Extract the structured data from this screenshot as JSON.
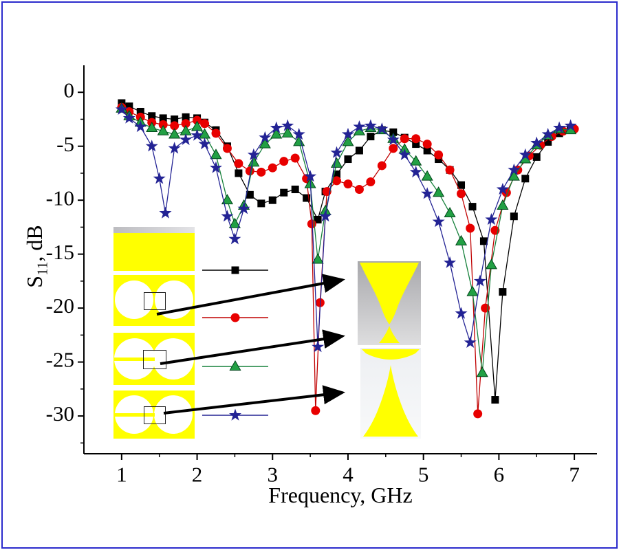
{
  "page": {
    "background": "#ffffff",
    "border_color": "#2a2acc"
  },
  "chart_data": {
    "type": "line",
    "title": "",
    "xlabel": "Frequency, GHz",
    "ylabel": "S11, dB",
    "ylabel_parts": {
      "main": "S",
      "sub": "11",
      "rest": ", dB"
    },
    "xlim": [
      0.5,
      7.3
    ],
    "ylim": [
      -33.5,
      2.5
    ],
    "xticks": [
      1,
      2,
      3,
      4,
      5,
      6,
      7
    ],
    "yticks": [
      0,
      -5,
      -10,
      -15,
      -20,
      -25,
      -30
    ],
    "grid": false,
    "legend": {
      "position": "inside-bottom-left",
      "style": "marker-and-line swatches, no text"
    },
    "series": [
      {
        "name": "solid-patch",
        "marker": "square",
        "color": "#000000",
        "line_color": "#000000",
        "x": [
          1.0,
          1.1,
          1.25,
          1.4,
          1.55,
          1.7,
          1.85,
          2.0,
          2.1,
          2.25,
          2.4,
          2.55,
          2.7,
          2.85,
          3.0,
          3.15,
          3.3,
          3.45,
          3.6,
          3.7,
          3.85,
          4.0,
          4.15,
          4.3,
          4.45,
          4.6,
          4.75,
          4.9,
          5.05,
          5.2,
          5.35,
          5.5,
          5.65,
          5.8,
          5.95,
          6.05,
          6.2,
          6.35,
          6.5,
          6.65,
          6.8,
          6.95
        ],
        "y": [
          -1.0,
          -1.3,
          -1.8,
          -2.2,
          -2.4,
          -2.5,
          -2.3,
          -2.4,
          -2.8,
          -3.5,
          -5.0,
          -7.5,
          -9.5,
          -10.3,
          -10.0,
          -9.3,
          -9.0,
          -9.8,
          -11.8,
          -9.2,
          -7.6,
          -6.2,
          -5.4,
          -4.1,
          -3.5,
          -3.7,
          -4.2,
          -4.8,
          -5.4,
          -6.2,
          -7.2,
          -8.6,
          -10.6,
          -13.8,
          -28.5,
          -18.5,
          -11.5,
          -8.0,
          -6.0,
          -4.6,
          -3.8,
          -3.5
        ]
      },
      {
        "name": "circle-slots-wide-gap",
        "marker": "circle",
        "color": "#e80000",
        "line_color": "#c00000",
        "x": [
          1.0,
          1.1,
          1.25,
          1.4,
          1.55,
          1.7,
          1.85,
          2.0,
          2.1,
          2.25,
          2.4,
          2.55,
          2.7,
          2.85,
          3.0,
          3.15,
          3.3,
          3.45,
          3.52,
          3.57,
          3.63,
          3.72,
          3.85,
          4.0,
          4.15,
          4.3,
          4.45,
          4.6,
          4.75,
          4.9,
          5.05,
          5.2,
          5.35,
          5.5,
          5.62,
          5.72,
          5.82,
          5.95,
          6.1,
          6.25,
          6.4,
          6.55,
          6.7,
          6.85,
          7.0
        ],
        "y": [
          -1.4,
          -1.8,
          -2.3,
          -2.8,
          -3.0,
          -3.1,
          -2.9,
          -2.6,
          -2.9,
          -3.8,
          -5.2,
          -6.6,
          -7.3,
          -7.4,
          -7.0,
          -6.4,
          -6.1,
          -8.0,
          -12.2,
          -29.5,
          -19.5,
          -9.2,
          -8.2,
          -8.5,
          -9.0,
          -8.3,
          -6.8,
          -5.2,
          -4.3,
          -4.3,
          -4.8,
          -5.8,
          -7.2,
          -9.4,
          -12.6,
          -29.8,
          -20.0,
          -12.8,
          -9.3,
          -7.2,
          -5.9,
          -4.9,
          -4.1,
          -3.6,
          -3.4
        ]
      },
      {
        "name": "circle-slots-narrow-gap",
        "marker": "triangle",
        "color": "#22a044",
        "line_color": "#15803a",
        "x": [
          1.0,
          1.1,
          1.25,
          1.4,
          1.55,
          1.7,
          1.85,
          2.0,
          2.1,
          2.25,
          2.4,
          2.5,
          2.62,
          2.75,
          2.9,
          3.05,
          3.2,
          3.35,
          3.5,
          3.6,
          3.7,
          3.85,
          4.0,
          4.15,
          4.3,
          4.45,
          4.6,
          4.75,
          4.9,
          5.05,
          5.2,
          5.35,
          5.5,
          5.65,
          5.78,
          5.9,
          6.05,
          6.2,
          6.35,
          6.5,
          6.65,
          6.8,
          6.95
        ],
        "y": [
          -1.5,
          -2.2,
          -2.8,
          -3.3,
          -3.6,
          -3.9,
          -3.6,
          -3.2,
          -3.9,
          -5.8,
          -10.0,
          -12.2,
          -10.5,
          -6.5,
          -4.8,
          -3.9,
          -3.8,
          -4.6,
          -8.5,
          -15.5,
          -11.0,
          -6.6,
          -4.6,
          -3.6,
          -3.3,
          -3.5,
          -4.3,
          -5.3,
          -6.4,
          -7.8,
          -9.3,
          -11.2,
          -13.8,
          -18.5,
          -26.0,
          -16.0,
          -10.5,
          -7.8,
          -6.2,
          -4.9,
          -4.0,
          -3.4,
          -3.5
        ]
      },
      {
        "name": "circle-slots-bowtie",
        "marker": "star",
        "color": "#232394",
        "line_color": "#232394",
        "x": [
          1.0,
          1.1,
          1.25,
          1.4,
          1.5,
          1.58,
          1.7,
          1.85,
          2.0,
          2.1,
          2.25,
          2.4,
          2.5,
          2.62,
          2.75,
          2.9,
          3.05,
          3.2,
          3.35,
          3.5,
          3.6,
          3.7,
          3.85,
          4.0,
          4.15,
          4.3,
          4.45,
          4.6,
          4.75,
          4.9,
          5.05,
          5.2,
          5.35,
          5.5,
          5.62,
          5.75,
          5.9,
          6.05,
          6.2,
          6.35,
          6.5,
          6.65,
          6.8,
          6.95
        ],
        "y": [
          -1.6,
          -2.4,
          -3.2,
          -5.0,
          -8.0,
          -11.2,
          -5.2,
          -4.4,
          -4.0,
          -4.8,
          -7.0,
          -11.5,
          -13.6,
          -10.8,
          -5.8,
          -4.2,
          -3.3,
          -3.1,
          -3.9,
          -7.8,
          -23.6,
          -11.5,
          -5.6,
          -3.9,
          -3.2,
          -3.1,
          -3.4,
          -4.4,
          -5.8,
          -7.4,
          -9.4,
          -12.0,
          -15.8,
          -20.5,
          -23.2,
          -17.5,
          -11.8,
          -9.0,
          -7.2,
          -5.8,
          -4.7,
          -3.9,
          -3.3,
          -3.1
        ]
      }
    ]
  },
  "insets": {
    "thumbnails": [
      {
        "name": "antenna-solid-patch"
      },
      {
        "name": "antenna-two-circle-slots-wide-gap"
      },
      {
        "name": "antenna-two-circle-slots-narrow-gap"
      },
      {
        "name": "antenna-two-circle-slots-bowtie"
      }
    ],
    "zoom_views": [
      {
        "name": "bowtie-slot-zoom-top"
      },
      {
        "name": "bowtie-slot-zoom-bottom"
      }
    ],
    "accent_yellow": "#ffff00"
  }
}
